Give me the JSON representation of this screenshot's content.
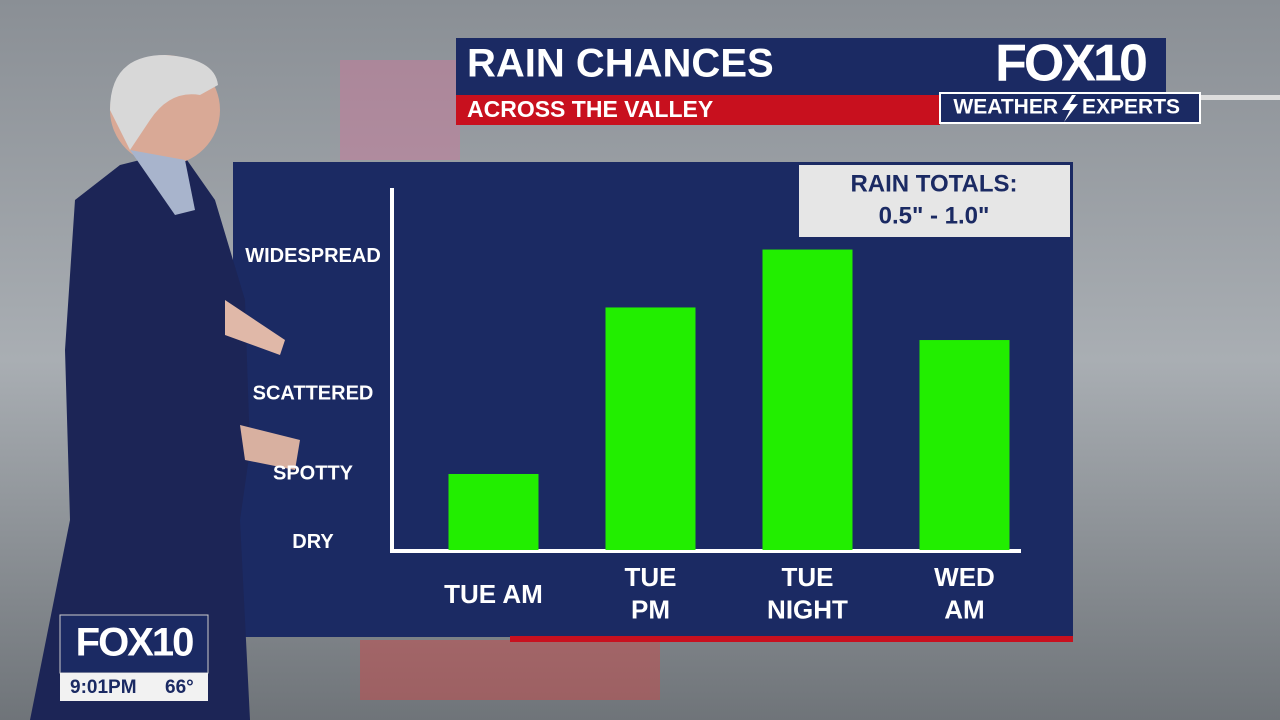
{
  "header": {
    "title": "RAIN CHANCES",
    "subtitle": "ACROSS THE VALLEY",
    "logo": "FOX10",
    "brand_left": "WEATHER",
    "brand_right": "EXPERTS"
  },
  "chart_data": {
    "type": "bar",
    "categories": [
      "TUE AM",
      "TUE\nPM",
      "TUE\nNIGHT",
      "WED\nAM"
    ],
    "values": [
      21,
      67,
      83,
      58
    ],
    "color": "#22ee00",
    "ylim": [
      0,
      100
    ],
    "yticks": [
      {
        "value": 2,
        "label": "DRY"
      },
      {
        "value": 21,
        "label": "SPOTTY"
      },
      {
        "value": 43,
        "label": "SCATTERED"
      },
      {
        "value": 81,
        "label": "WIDESPREAD"
      }
    ],
    "annotation": {
      "title": "RAIN TOTALS:",
      "text": "0.5\" - 1.0\""
    }
  },
  "bug": {
    "logo": "FOX10",
    "time": "9:01PM",
    "temperature": "66°"
  }
}
